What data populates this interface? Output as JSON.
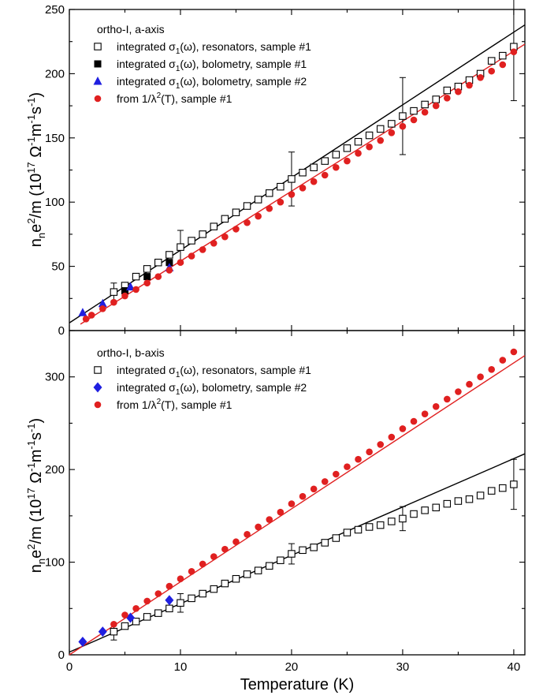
{
  "chart_data": [
    {
      "type": "scatter",
      "panel": "top",
      "title": "ortho-I, a-axis",
      "xlim": [
        0,
        41
      ],
      "ylim": [
        0,
        250
      ],
      "yticks": [
        "0",
        "50",
        "100",
        "150",
        "200",
        "250"
      ],
      "ylabel": {
        "main": "n",
        "sub1": "n",
        "mid": "e",
        "sup1": "2",
        "tail": "/m  (10",
        "sup2": "17",
        "units": " Ω",
        "sup3": "-1",
        "m": "m",
        "sup4": "-1",
        "s": "s",
        "sup5": "-1",
        "close": ")"
      },
      "series": [
        {
          "name": "integrated σ1(ω), resonators, sample #1",
          "legend": {
            "pre": "integrated σ",
            "sub": "1",
            "post": "(ω), resonators, sample #1"
          },
          "marker": "open-square",
          "color": "#000000",
          "x": [
            4,
            5,
            6,
            7,
            8,
            9,
            10,
            11,
            12,
            13,
            14,
            15,
            16,
            17,
            18,
            19,
            20,
            21,
            22,
            23,
            24,
            25,
            26,
            27,
            28,
            29,
            30,
            31,
            32,
            33,
            34,
            35,
            36,
            37,
            38,
            39,
            40
          ],
          "y": [
            30,
            35,
            42,
            48,
            53,
            59,
            65,
            70,
            75,
            81,
            87,
            92,
            97,
            102,
            107,
            112,
            118,
            123,
            127,
            132,
            137,
            142,
            147,
            152,
            157,
            161,
            167,
            171,
            176,
            180,
            187,
            190,
            195,
            200,
            210,
            214,
            221
          ],
          "errorbars": [
            {
              "x": 4,
              "y": 30,
              "err": 7
            },
            {
              "x": 10,
              "y": 65,
              "err": 13
            },
            {
              "x": 20,
              "y": 118,
              "err": 21
            },
            {
              "x": 30,
              "y": 167,
              "err": 30
            },
            {
              "x": 40,
              "y": 221,
              "err": 42
            }
          ]
        },
        {
          "name": "integrated σ1(ω), bolometry, sample #1",
          "legend": {
            "pre": "integrated σ",
            "sub": "1",
            "post": "(ω), bolometry, sample #1"
          },
          "marker": "filled-square",
          "color": "#000000",
          "x": [
            5,
            7,
            9
          ],
          "y": [
            31,
            42,
            53
          ]
        },
        {
          "name": "integrated σ1(ω), bolometry, sample #2",
          "legend": {
            "pre": "integrated σ",
            "sub": "1",
            "post": "(ω), bolometry, sample #2"
          },
          "marker": "triangle",
          "color": "#1f1fe0",
          "x": [
            1.2,
            3,
            5.5,
            9
          ],
          "y": [
            14,
            21,
            34,
            49
          ]
        },
        {
          "name": "from 1/λ²(T), sample #1",
          "legend": {
            "pre": "from 1/λ",
            "sup": "2",
            "post": "(T), sample #1"
          },
          "marker": "circle",
          "color": "#e02020",
          "x": [
            1.5,
            2,
            3,
            4,
            5,
            6,
            7,
            8,
            9,
            10,
            11,
            12,
            13,
            14,
            15,
            16,
            17,
            18,
            19,
            20,
            21,
            22,
            23,
            24,
            25,
            26,
            27,
            28,
            29,
            30,
            31,
            32,
            33,
            34,
            35,
            36,
            37,
            38,
            39,
            40
          ],
          "y": [
            9,
            12,
            17,
            22,
            27,
            32,
            37,
            42,
            47,
            53,
            58,
            63,
            68,
            73,
            79,
            84,
            89,
            95,
            100,
            106,
            111,
            116,
            121,
            127,
            132,
            138,
            143,
            148,
            154,
            159,
            164,
            170,
            175,
            181,
            186,
            191,
            197,
            202,
            207,
            217
          ]
        }
      ],
      "fit_lines": [
        {
          "color": "#000000",
          "x": [
            0,
            41
          ],
          "y": [
            6,
            238
          ]
        },
        {
          "color": "#e02020",
          "x": [
            1,
            41
          ],
          "y": [
            5,
            223
          ]
        }
      ]
    },
    {
      "type": "scatter",
      "panel": "bottom",
      "title": "ortho-I, b-axis",
      "xlim": [
        0,
        41
      ],
      "ylim": [
        0,
        350
      ],
      "yticks": [
        "0",
        "100",
        "200",
        "300"
      ],
      "xticks": [
        "0",
        "10",
        "20",
        "30",
        "40"
      ],
      "xlabel": "Temperature (K)",
      "ylabel": {
        "main": "n",
        "sub1": "n",
        "mid": "e",
        "sup1": "2",
        "tail": "/m  (10",
        "sup2": "17",
        "units": " Ω",
        "sup3": "-1",
        "m": "m",
        "sup4": "-1",
        "s": "s",
        "sup5": "-1",
        "close": ")"
      },
      "series": [
        {
          "name": "integrated σ1(ω), resonators, sample #1",
          "legend": {
            "pre": "integrated σ",
            "sub": "1",
            "post": "(ω), resonators, sample #1"
          },
          "marker": "open-square",
          "color": "#000000",
          "x": [
            4,
            5,
            6,
            7,
            8,
            9,
            10,
            11,
            12,
            13,
            14,
            15,
            16,
            17,
            18,
            19,
            20,
            21,
            22,
            23,
            24,
            25,
            26,
            27,
            28,
            29,
            30,
            31,
            32,
            33,
            34,
            35,
            36,
            37,
            38,
            39,
            40
          ],
          "y": [
            25,
            31,
            36,
            41,
            45,
            50,
            56,
            61,
            66,
            71,
            77,
            82,
            87,
            91,
            96,
            102,
            109,
            113,
            116,
            121,
            126,
            132,
            135,
            138,
            140,
            144,
            147,
            152,
            156,
            159,
            163,
            166,
            168,
            172,
            177,
            180,
            184
          ],
          "errorbars": [
            {
              "x": 4,
              "y": 25,
              "err": 9
            },
            {
              "x": 10,
              "y": 56,
              "err": 10
            },
            {
              "x": 20,
              "y": 109,
              "err": 11
            },
            {
              "x": 30,
              "y": 147,
              "err": 13
            },
            {
              "x": 40,
              "y": 184,
              "err": 27
            }
          ]
        },
        {
          "name": "integrated σ1(ω), bolometry, sample #2",
          "legend": {
            "pre": "integrated σ",
            "sub": "1",
            "post": "(ω), bolometry, sample #2"
          },
          "marker": "diamond",
          "color": "#1f1fe0",
          "x": [
            1.2,
            3,
            5.5,
            9
          ],
          "y": [
            14,
            25,
            40,
            59
          ]
        },
        {
          "name": "from 1/λ²(T), sample #1",
          "legend": {
            "pre": "from 1/λ",
            "sup": "2",
            "post": "(T), sample #1"
          },
          "marker": "circle",
          "color": "#e02020",
          "x": [
            4,
            5,
            6,
            7,
            8,
            9,
            10,
            11,
            12,
            13,
            14,
            15,
            16,
            17,
            18,
            19,
            20,
            21,
            22,
            23,
            24,
            25,
            26,
            27,
            28,
            29,
            30,
            31,
            32,
            33,
            34,
            35,
            36,
            37,
            38,
            39,
            40
          ],
          "y": [
            33,
            43,
            50,
            58,
            66,
            74,
            82,
            90,
            98,
            106,
            114,
            122,
            130,
            138,
            146,
            154,
            163,
            171,
            179,
            187,
            195,
            203,
            211,
            219,
            227,
            235,
            244,
            252,
            260,
            268,
            276,
            284,
            292,
            300,
            308,
            318,
            327
          ]
        }
      ],
      "fit_lines": [
        {
          "color": "#000000",
          "x": [
            0,
            41
          ],
          "y": [
            3,
            217
          ]
        },
        {
          "color": "#e02020",
          "x": [
            0,
            41
          ],
          "y": [
            0,
            323
          ]
        }
      ]
    }
  ]
}
